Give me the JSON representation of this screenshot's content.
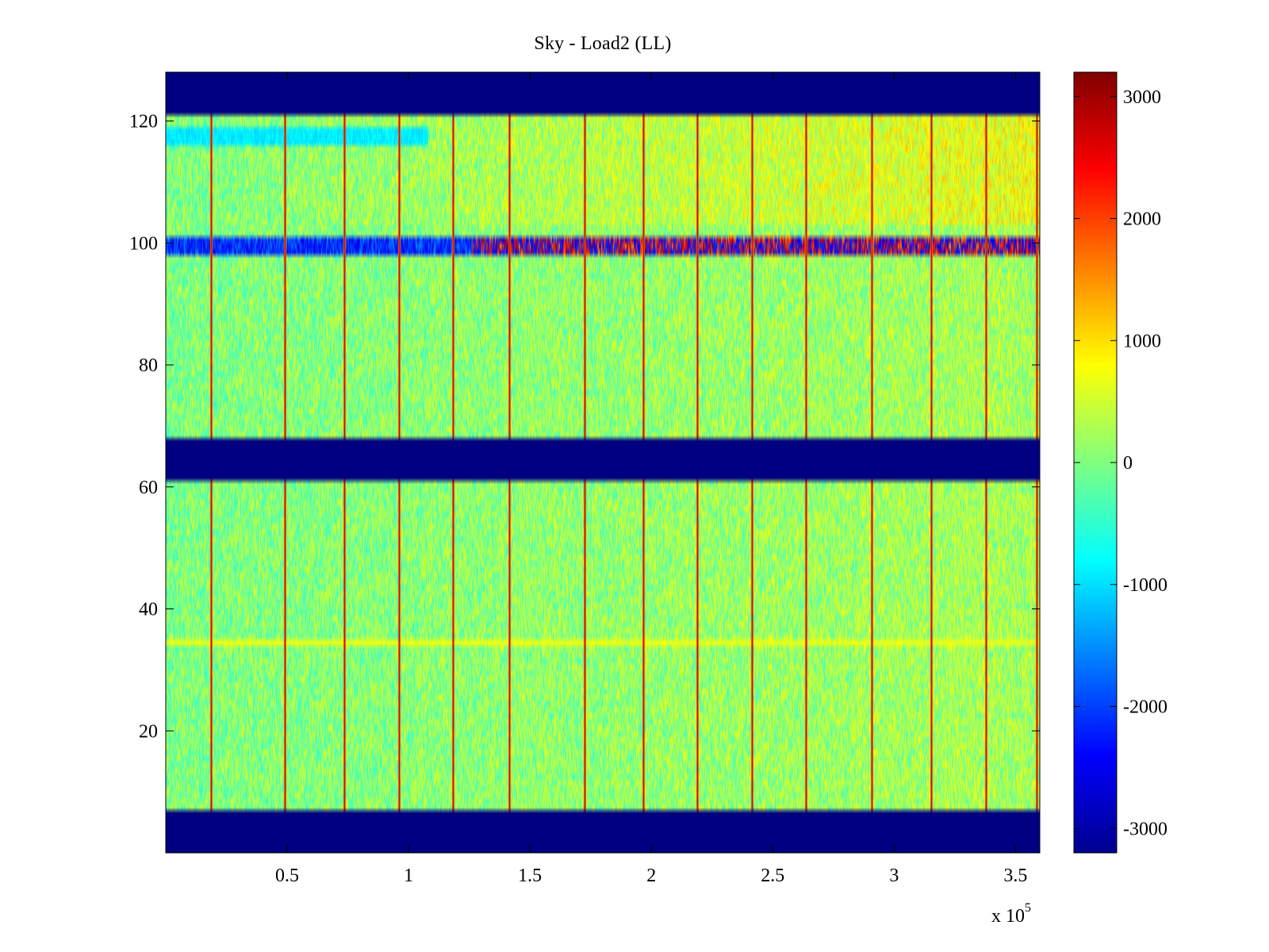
{
  "figure": {
    "title": "Sky - Load2 (LL)",
    "x_exponent": "x 10",
    "x_exponent_power": "5"
  },
  "chart_data": {
    "type": "heatmap",
    "title": "Sky - Load2 (LL)",
    "xlabel": "",
    "ylabel": "",
    "xlim": [
      0,
      360000
    ],
    "ylim": [
      0,
      128
    ],
    "x_ticks": [
      50000,
      100000,
      150000,
      200000,
      250000,
      300000,
      350000
    ],
    "x_tick_labels": [
      "0.5",
      "1",
      "1.5",
      "2",
      "2.5",
      "3",
      "3.5"
    ],
    "x_multiplier_label": "x 10^5",
    "y_ticks": [
      20,
      40,
      60,
      80,
      100,
      120
    ],
    "y_tick_labels": [
      "20",
      "40",
      "60",
      "80",
      "100",
      "120"
    ],
    "colorbar": {
      "colormap": "jet",
      "range": [
        -3200,
        3200
      ],
      "ticks": [
        -3000,
        -2000,
        -1000,
        0,
        1000,
        2000,
        3000
      ],
      "tick_labels": [
        "-3000",
        "-2000",
        "-1000",
        "0",
        "1000",
        "2000",
        "3000"
      ]
    },
    "masked_row_bands": [
      {
        "from": 0,
        "to": 7,
        "value": -3200
      },
      {
        "from": 61,
        "to": 68,
        "value": -3200
      },
      {
        "from": 121,
        "to": 128,
        "value": -3200
      }
    ],
    "background_level": 0,
    "noise_amplitude": 600,
    "spike_columns_x": [
      18500,
      49000,
      73500,
      96000,
      118500,
      141500,
      172500,
      197000,
      219000,
      241500,
      264000,
      291000,
      315500,
      338000,
      359000
    ],
    "spike_value": 3000,
    "anomalous_rows": [
      {
        "from": 98,
        "to": 101,
        "values": "alternating -2800 to 3000"
      },
      {
        "from": 116,
        "to": 119,
        "value": -900
      },
      {
        "from": 34,
        "to": 35,
        "value": 800
      }
    ],
    "gradient_note_top_right_rows_103_121": "values increase toward +1000 at high x"
  },
  "colors": {
    "masked": "#00008f",
    "axes": "#000000",
    "background": "#ffffff"
  }
}
